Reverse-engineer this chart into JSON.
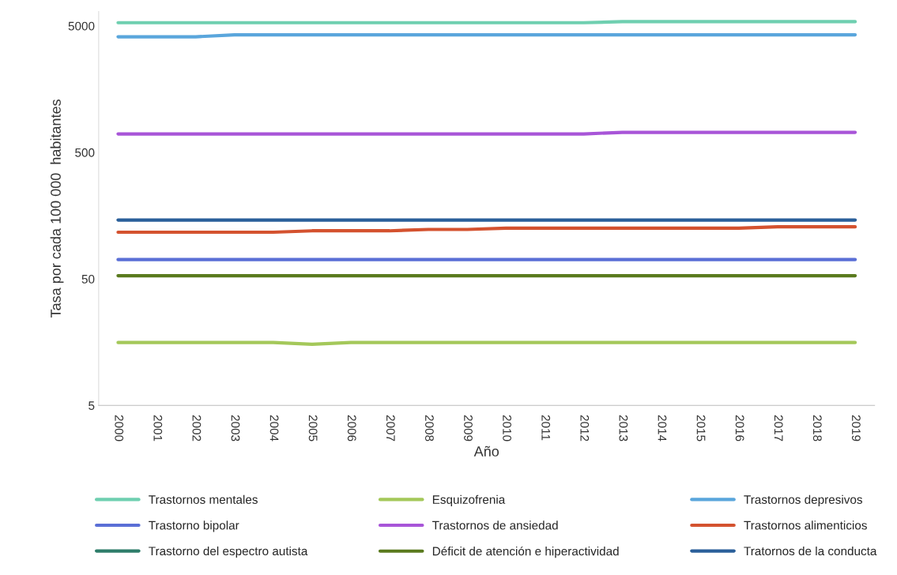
{
  "chart_data": {
    "type": "line",
    "xlabel": "Año",
    "ylabel": "Tasa por cada 100 000  habitantes",
    "categories": [
      "2000",
      "2001",
      "2002",
      "2003",
      "2004",
      "2005",
      "2006",
      "2007",
      "2008",
      "2009",
      "2010",
      "2011",
      "2012",
      "2013",
      "2014",
      "2015",
      "2016",
      "2017",
      "2018",
      "2019"
    ],
    "log": true,
    "ylim": [
      5,
      6500
    ],
    "yticks": [
      5,
      50,
      500,
      5000
    ],
    "grid": false,
    "legend": "bottom",
    "line_style": "solid",
    "marker": "none",
    "series": [
      {
        "name": "Trastornos mentales",
        "color": "#6fcfb0",
        "values": [
          5300,
          5300,
          5300,
          5300,
          5300,
          5300,
          5300,
          5300,
          5300,
          5300,
          5300,
          5300,
          5300,
          5400,
          5400,
          5400,
          5400,
          5400,
          5400,
          5400
        ]
      },
      {
        "name": "Esquizofrenia",
        "color": "#a4c85a",
        "values": [
          15.7,
          15.7,
          15.7,
          15.7,
          15.7,
          15.2,
          15.7,
          15.7,
          15.7,
          15.7,
          15.7,
          15.7,
          15.7,
          15.7,
          15.7,
          15.7,
          15.7,
          15.7,
          15.7,
          15.7
        ]
      },
      {
        "name": "Trastornos depresivos",
        "color": "#5aa6dc",
        "values": [
          4100,
          4100,
          4100,
          4250,
          4250,
          4250,
          4250,
          4250,
          4250,
          4250,
          4250,
          4250,
          4250,
          4250,
          4250,
          4250,
          4250,
          4250,
          4250,
          4250
        ]
      },
      {
        "name": "Trastorno bipolar",
        "color": "#5a6fd6",
        "values": [
          71,
          71,
          71,
          71,
          71,
          71,
          71,
          71,
          71,
          71,
          71,
          71,
          71,
          71,
          71,
          71,
          71,
          71,
          71,
          71
        ]
      },
      {
        "name": "Trastornos de ansiedad",
        "color": "#a855d8",
        "values": [
          700,
          700,
          700,
          700,
          700,
          700,
          700,
          700,
          700,
          700,
          700,
          700,
          700,
          720,
          720,
          720,
          720,
          720,
          720,
          720
        ]
      },
      {
        "name": "Trastornos alimenticios",
        "color": "#d4522f",
        "values": [
          117,
          117,
          117,
          117,
          117,
          120,
          120,
          120,
          123,
          123,
          126,
          126,
          126,
          126,
          126,
          126,
          126,
          129,
          129,
          129
        ]
      },
      {
        "name": "Trastorno del espectro autista",
        "color": "#2e7d6a",
        "values": [
          null,
          null,
          null,
          null,
          null,
          null,
          null,
          null,
          null,
          null,
          null,
          null,
          null,
          null,
          null,
          null,
          null,
          null,
          null,
          null
        ]
      },
      {
        "name": "Déficit de atención e hiperactividad",
        "color": "#5a7a1e",
        "values": [
          53,
          53,
          53,
          53,
          53,
          53,
          53,
          53,
          53,
          53,
          53,
          53,
          53,
          53,
          53,
          53,
          53,
          53,
          53,
          53
        ]
      },
      {
        "name": "Tratornos de la conducta",
        "color": "#2a5f9a",
        "values": [
          146,
          146,
          146,
          146,
          146,
          146,
          146,
          146,
          146,
          146,
          146,
          146,
          146,
          146,
          146,
          146,
          146,
          146,
          146,
          146
        ]
      }
    ]
  }
}
